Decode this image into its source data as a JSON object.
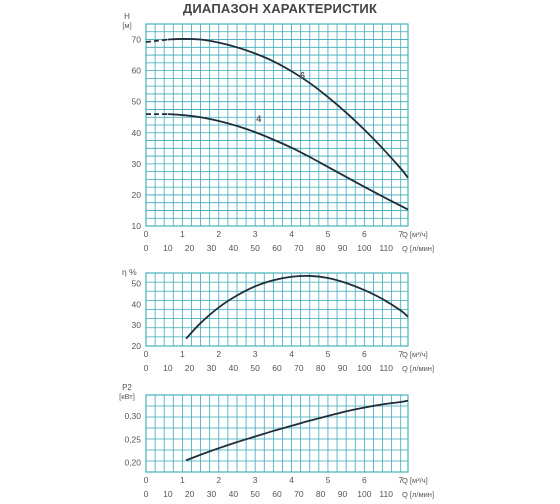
{
  "title": "ДИАПАЗОН ХАРАКТЕРИСТИК",
  "colors": {
    "grid": "#3aa9b8",
    "curve": "#1f2d3a",
    "text": "#555555"
  },
  "chart_data": [
    {
      "id": "head",
      "type": "line",
      "ylabel": "H",
      "yunit": "[м]",
      "ylim": [
        10,
        75
      ],
      "yticks": [
        10,
        20,
        30,
        40,
        50,
        60,
        70
      ],
      "x_top_label": "Q [м³/ч]",
      "x_top_ticks": [
        0,
        1,
        2,
        3,
        4,
        5,
        6,
        7
      ],
      "x_bottom_label": "Q [л/мин]",
      "x_bottom_ticks": [
        0,
        10,
        20,
        30,
        40,
        50,
        60,
        70,
        80,
        90,
        100,
        110
      ],
      "xlim": [
        0,
        7.2
      ],
      "grid": true,
      "series": [
        {
          "name": "6",
          "label_at": [
            4.3,
            57.5
          ],
          "dashed_x": [
            0,
            0.6
          ],
          "x": [
            0,
            0.3,
            0.6,
            1.0,
            1.5,
            2.0,
            2.5,
            3.0,
            3.5,
            4.0,
            4.5,
            5.0,
            5.5,
            6.0,
            6.5,
            7.0,
            7.2
          ],
          "y": [
            69.2,
            69.6,
            70.0,
            70.2,
            70.0,
            69.0,
            67.5,
            65.5,
            63.0,
            59.8,
            56.0,
            51.5,
            46.5,
            41.0,
            35.0,
            28.5,
            25.5
          ]
        },
        {
          "name": "4",
          "label_at": [
            3.1,
            43.5
          ],
          "dashed_x": [
            0,
            0.6
          ],
          "x": [
            0,
            0.3,
            0.6,
            1.0,
            1.5,
            2.0,
            2.5,
            3.0,
            3.5,
            4.0,
            4.5,
            5.0,
            5.5,
            6.0,
            6.5,
            7.0,
            7.2
          ],
          "y": [
            46.0,
            46.0,
            46.0,
            45.7,
            45.0,
            43.8,
            42.2,
            40.2,
            37.8,
            35.2,
            32.2,
            29.0,
            25.8,
            22.6,
            19.5,
            16.5,
            15.3
          ]
        }
      ]
    },
    {
      "id": "efficiency",
      "type": "line",
      "ylabel": "η %",
      "ylim": [
        20,
        55
      ],
      "yticks": [
        20,
        30,
        40,
        50
      ],
      "x_top_label": "Q [м³/ч]",
      "x_top_ticks": [
        0,
        1,
        2,
        3,
        4,
        5,
        6,
        7
      ],
      "x_bottom_label": "Q [л/мин]",
      "x_bottom_ticks": [
        0,
        10,
        20,
        30,
        40,
        50,
        60,
        70,
        80,
        90,
        100,
        110
      ],
      "xlim": [
        0,
        7.2
      ],
      "grid": true,
      "series": [
        {
          "x": [
            1.1,
            1.5,
            2.0,
            2.5,
            3.0,
            3.5,
            4.0,
            4.5,
            5.0,
            5.5,
            6.0,
            6.5,
            7.0,
            7.2
          ],
          "y": [
            23.5,
            31.0,
            38.5,
            44.2,
            48.6,
            51.5,
            53.2,
            53.6,
            52.6,
            50.2,
            46.8,
            42.5,
            37.0,
            34.0
          ]
        }
      ]
    },
    {
      "id": "power",
      "type": "line",
      "ylabel": "P2",
      "yunit": "[кВт]",
      "ylim": [
        0.18,
        0.345
      ],
      "yticks": [
        0.2,
        0.25,
        0.3
      ],
      "ytick_labels": [
        "0,20",
        "0,25",
        "0,30"
      ],
      "x_top_label": "Q [м³/ч]",
      "x_top_ticks": [
        0,
        1,
        2,
        3,
        4,
        5,
        6,
        7
      ],
      "x_bottom_label": "Q [л/мин]",
      "x_bottom_ticks": [
        0,
        10,
        20,
        30,
        40,
        50,
        60,
        70,
        80,
        90,
        100,
        110
      ],
      "xlim": [
        0,
        7.2
      ],
      "grid": true,
      "series": [
        {
          "x": [
            1.1,
            1.5,
            2.0,
            2.5,
            3.0,
            3.5,
            4.0,
            4.5,
            5.0,
            5.5,
            6.0,
            6.5,
            7.0,
            7.2
          ],
          "y": [
            0.205,
            0.217,
            0.231,
            0.244,
            0.256,
            0.268,
            0.279,
            0.29,
            0.3,
            0.31,
            0.318,
            0.325,
            0.33,
            0.333
          ]
        }
      ]
    }
  ]
}
